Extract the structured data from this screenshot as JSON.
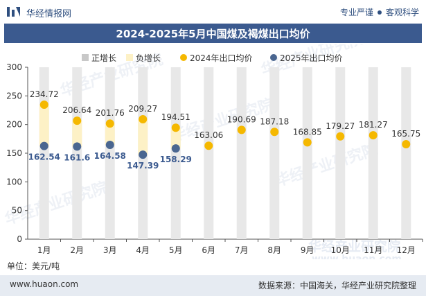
{
  "header": {
    "brand": "华经情报网",
    "slogan_left": "专业严谨",
    "slogan_right": "客观科学",
    "title": "2024-2025年5月中国煤及褐煤出口均价"
  },
  "footer": {
    "website": "www.huaon.com",
    "source": "数据来源：中国海关，华经产业研究院整理"
  },
  "unit_label": "单位：美元/吨",
  "watermark": "华经产业研究院",
  "watermark_url": "www.huaon.com",
  "colors": {
    "increase": "#c8c8c8",
    "decrease": "#fdf1c6",
    "s2024": "#f5b800",
    "s2025": "#4a6690",
    "title_bg": "#3b5a8f"
  },
  "chart_data": {
    "type": "line",
    "categories": [
      "1月",
      "2月",
      "3月",
      "4月",
      "5月",
      "6月",
      "7月",
      "8月",
      "9月",
      "10月",
      "11月",
      "12月"
    ],
    "ylim": [
      0,
      300
    ],
    "yticks": [
      0,
      50,
      100,
      150,
      200,
      250,
      300
    ],
    "legend": [
      "正增长",
      "负增长",
      "2024年出口均价",
      "2025年出口均价"
    ],
    "legend_position": "top",
    "series": [
      {
        "name": "2024年出口均价",
        "values": [
          234.72,
          206.64,
          201.76,
          209.27,
          194.51,
          163.06,
          190.69,
          187.18,
          168.85,
          179.27,
          181.27,
          165.75
        ]
      },
      {
        "name": "2025年出口均价",
        "values": [
          162.54,
          161.6,
          164.58,
          147.39,
          158.29,
          null,
          null,
          null,
          null,
          null,
          null,
          null
        ]
      }
    ]
  }
}
